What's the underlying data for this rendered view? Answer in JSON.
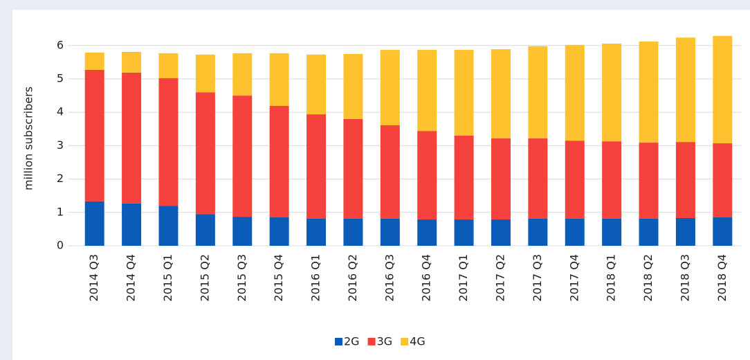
{
  "chart_data": {
    "type": "stacked_bar",
    "y_label": "million subscribers",
    "categories": [
      "2014 Q3",
      "2014 Q4",
      "2015 Q1",
      "2015 Q2",
      "2015 Q3",
      "2015 Q4",
      "2016 Q1",
      "2016 Q2",
      "2016 Q3",
      "2016 Q4",
      "2017 Q1",
      "2017 Q2",
      "2017 Q3",
      "2017 Q4",
      "2018 Q1",
      "2018 Q2",
      "2018 Q3",
      "2018 Q4"
    ],
    "series": [
      {
        "name": "2G",
        "color": "#0a5cb8",
        "values": [
          1.33,
          1.27,
          1.2,
          0.95,
          0.87,
          0.85,
          0.81,
          0.81,
          0.81,
          0.79,
          0.79,
          0.79,
          0.81,
          0.81,
          0.81,
          0.81,
          0.83,
          0.85
        ]
      },
      {
        "name": "3G",
        "color": "#f5413b",
        "values": [
          3.94,
          3.92,
          3.82,
          3.65,
          3.63,
          3.34,
          3.13,
          2.99,
          2.8,
          2.65,
          2.51,
          2.43,
          2.41,
          2.34,
          2.32,
          2.28,
          2.28,
          2.22
        ]
      },
      {
        "name": "4G",
        "color": "#fdc22e",
        "values": [
          0.52,
          0.62,
          0.75,
          1.13,
          1.27,
          1.58,
          1.79,
          1.95,
          2.26,
          2.43,
          2.57,
          2.67,
          2.76,
          2.87,
          2.93,
          3.03,
          3.13,
          3.22
        ]
      }
    ],
    "ylim": [
      0,
      6.5
    ],
    "yticks": [
      0,
      1,
      2,
      3,
      4,
      5,
      6
    ],
    "grid": true,
    "legend": "bottom"
  }
}
